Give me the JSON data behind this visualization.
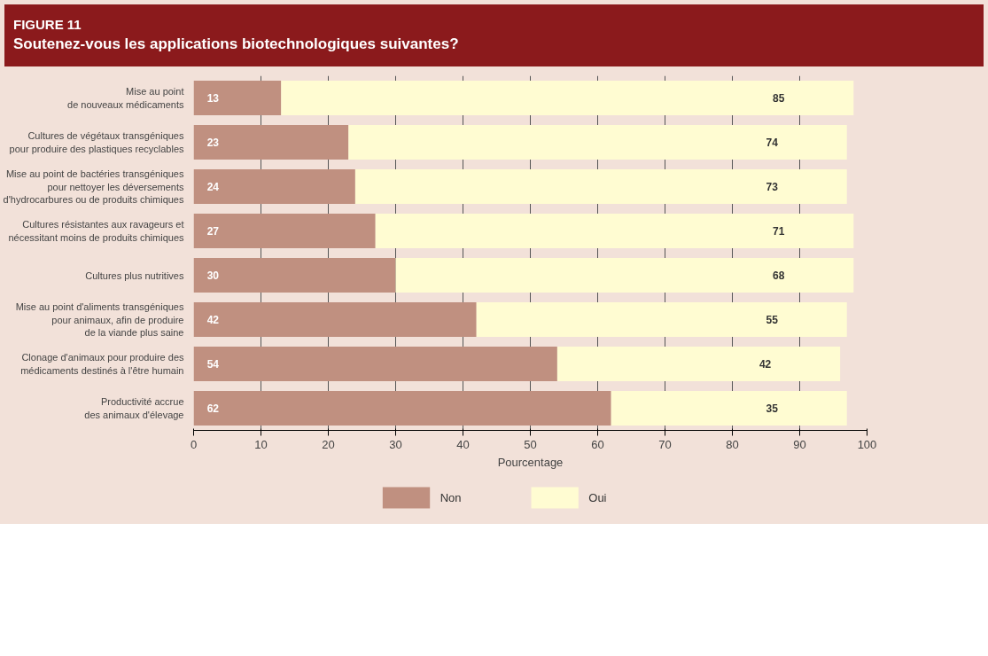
{
  "chart_data": {
    "type": "bar",
    "orientation": "horizontal",
    "stacked": true,
    "title": "FIGURE 11",
    "subtitle": "Soutenez-vous les applications biotechnologiques suivantes?",
    "xlabel": "Pourcentage",
    "categories": [
      "Mise au point\nde nouveaux médicaments",
      "Cultures de végétaux transgéniques\npour produire des plastiques recyclables",
      "Mise au point de bactéries transgéniques\npour nettoyer les déversements\nd'hydrocarbures ou de produits chimiques",
      "Cultures résistantes aux ravageurs et\nnécessitant moins de produits chimiques",
      "Cultures plus nutritives",
      "Mise au point d'aliments transgéniques\npour animaux, afin de produire\nde la viande plus saine",
      "Clonage d'animaux pour produire des\nmédicaments destinés à l'être humain",
      "Productivité accrue\ndes animaux d'élevage"
    ],
    "series": [
      {
        "name": "Non",
        "color": "#c09080",
        "values": [
          13,
          23,
          24,
          27,
          30,
          42,
          54,
          62
        ]
      },
      {
        "name": "Oui",
        "color": "#fffcd2",
        "values": [
          85,
          74,
          73,
          71,
          68,
          55,
          42,
          35
        ]
      }
    ],
    "xlim": [
      0,
      100
    ],
    "xticks": [
      0,
      10,
      20,
      30,
      40,
      50,
      60,
      70,
      80,
      90,
      100
    ],
    "grid": "x",
    "legend": "bottom",
    "data_labels": true
  }
}
